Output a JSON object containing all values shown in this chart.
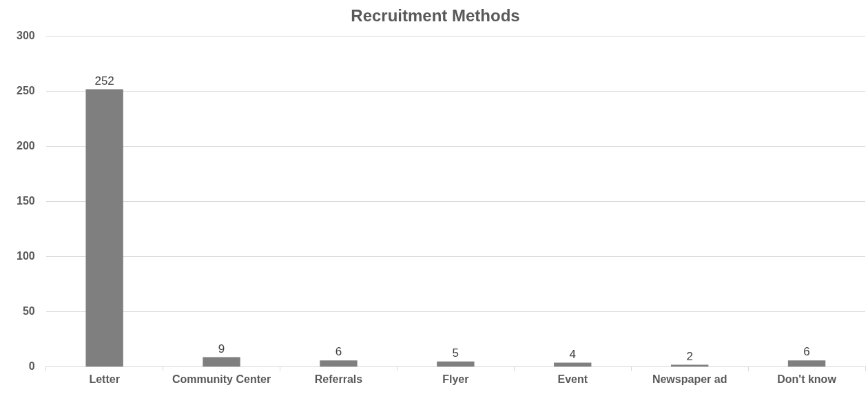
{
  "chart_data": {
    "type": "bar",
    "title": "Recruitment Methods",
    "categories": [
      "Letter",
      "Community Center",
      "Referrals",
      "Flyer",
      "Event",
      "Newspaper ad",
      "Don't know"
    ],
    "values": [
      252,
      9,
      6,
      5,
      4,
      2,
      6
    ],
    "color": "#7f7f7f",
    "ylim": [
      0,
      300
    ],
    "yticks": [
      0,
      50,
      100,
      150,
      200,
      250,
      300
    ],
    "grid": "y",
    "data_labels": true
  }
}
